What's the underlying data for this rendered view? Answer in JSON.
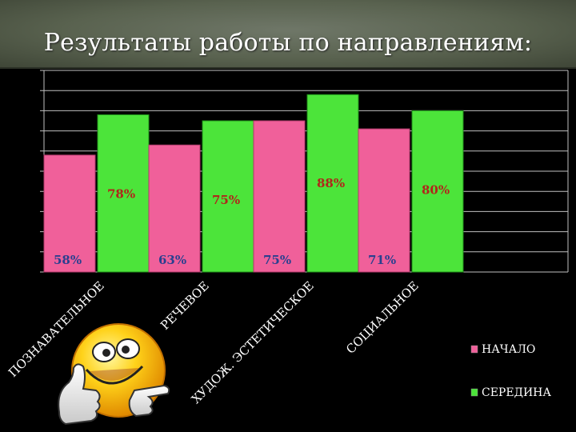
{
  "slide": {
    "title": "Результаты работы по направлениям:"
  },
  "chart_data": {
    "type": "bar",
    "categories": [
      "ПОЗНАВАТЕЛЬНОЕ",
      "РЕЧЕВОЕ",
      "ХУДОЖ. ЭСТЕТИЧЕСКОЕ",
      "СОЦИАЛЬНОЕ"
    ],
    "series": [
      {
        "name": "НАЧАЛО",
        "values": [
          58,
          63,
          75,
          71
        ],
        "labels": [
          "58%",
          "63%",
          "75%",
          "71%"
        ],
        "color": "#f0609a",
        "label_color": "#2a3f8f"
      },
      {
        "name": "СЕРЕДИНА",
        "values": [
          78,
          75,
          88,
          80
        ],
        "labels": [
          "78%",
          "75%",
          "88%",
          "80%"
        ],
        "color": "#4ce43a",
        "label_color": "#b0261b"
      }
    ],
    "ylim": [
      0,
      100
    ],
    "grid": true,
    "legend": "right",
    "background": "#000000",
    "gridline_color": "#bfbfbf",
    "category_label_color": "#ffffff"
  },
  "decor": {
    "smiley_icon": "smiley-thumbs-up-icon"
  }
}
